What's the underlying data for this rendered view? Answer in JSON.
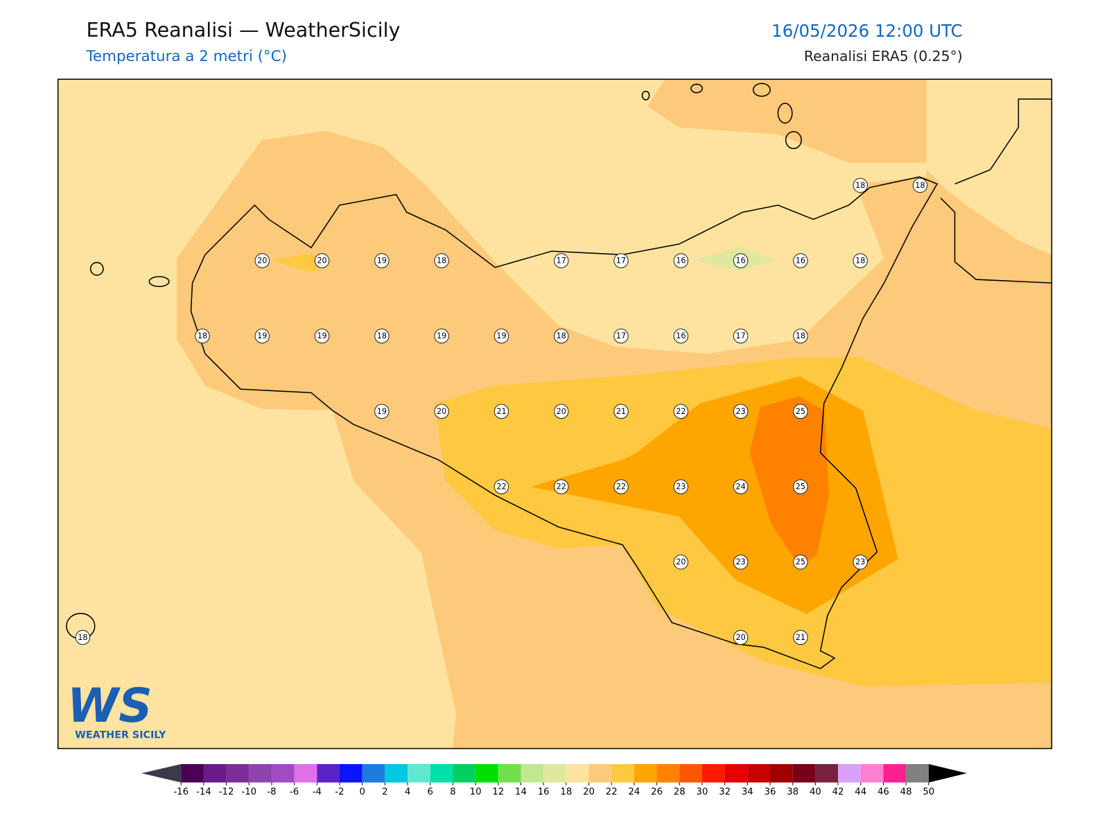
{
  "header": {
    "title": "ERA5 Reanalisi — WeatherSicily",
    "subtitle": "Temperatura a 2 metri (°C)",
    "datetime": "16/05/2026 12:00 UTC",
    "source": "Reanalisi ERA5 (0.25°)"
  },
  "map": {
    "grid_values": [
      [
        null,
        null,
        null,
        null,
        null,
        null,
        null,
        null,
        null,
        null,
        null,
        null,
        null,
        18,
        18
      ],
      [
        null,
        null,
        null,
        20,
        20,
        19,
        18,
        null,
        17,
        17,
        16,
        16,
        16,
        18,
        null
      ],
      [
        null,
        null,
        18,
        19,
        19,
        18,
        19,
        19,
        18,
        17,
        16,
        17,
        18,
        null,
        null
      ],
      [
        null,
        null,
        null,
        null,
        null,
        19,
        20,
        21,
        20,
        21,
        22,
        23,
        25,
        null,
        null
      ],
      [
        null,
        null,
        null,
        null,
        null,
        null,
        null,
        22,
        22,
        22,
        23,
        24,
        25,
        null,
        null
      ],
      [
        null,
        null,
        null,
        null,
        null,
        null,
        null,
        null,
        null,
        null,
        20,
        23,
        25,
        23,
        null
      ],
      [
        18,
        null,
        null,
        null,
        null,
        null,
        null,
        null,
        null,
        null,
        null,
        20,
        21,
        null,
        null
      ]
    ]
  },
  "colorbar": {
    "ticks": [
      -16,
      -14,
      -12,
      -10,
      -8,
      -6,
      -4,
      -2,
      0,
      2,
      4,
      6,
      8,
      10,
      12,
      14,
      16,
      18,
      20,
      22,
      24,
      26,
      28,
      30,
      32,
      34,
      36,
      38,
      40,
      42,
      44,
      46,
      48,
      50
    ],
    "colors": [
      "#4b0055",
      "#6a1a8a",
      "#7b2d9a",
      "#8e44ad",
      "#a24cc2",
      "#e070e8",
      "#5a22c8",
      "#0a14ff",
      "#1f7ae0",
      "#00c8e0",
      "#5ee8d0",
      "#00e0a8",
      "#00d060",
      "#00e000",
      "#70e050",
      "#c0e890",
      "#e0e8a0",
      "#fee3a0",
      "#fdc97a",
      "#fec840",
      "#fea500",
      "#fe8200",
      "#fe5500",
      "#fe1a00",
      "#e60000",
      "#c80000",
      "#a00000",
      "#780018",
      "#782040",
      "#d8a0f8",
      "#ff80d0",
      "#ff2090",
      "#808080",
      "#404040"
    ],
    "under_color": "#3a3a4a",
    "over_color": "#000000"
  },
  "logo": {
    "mark": "WS",
    "name": "WEATHER SICILY"
  }
}
